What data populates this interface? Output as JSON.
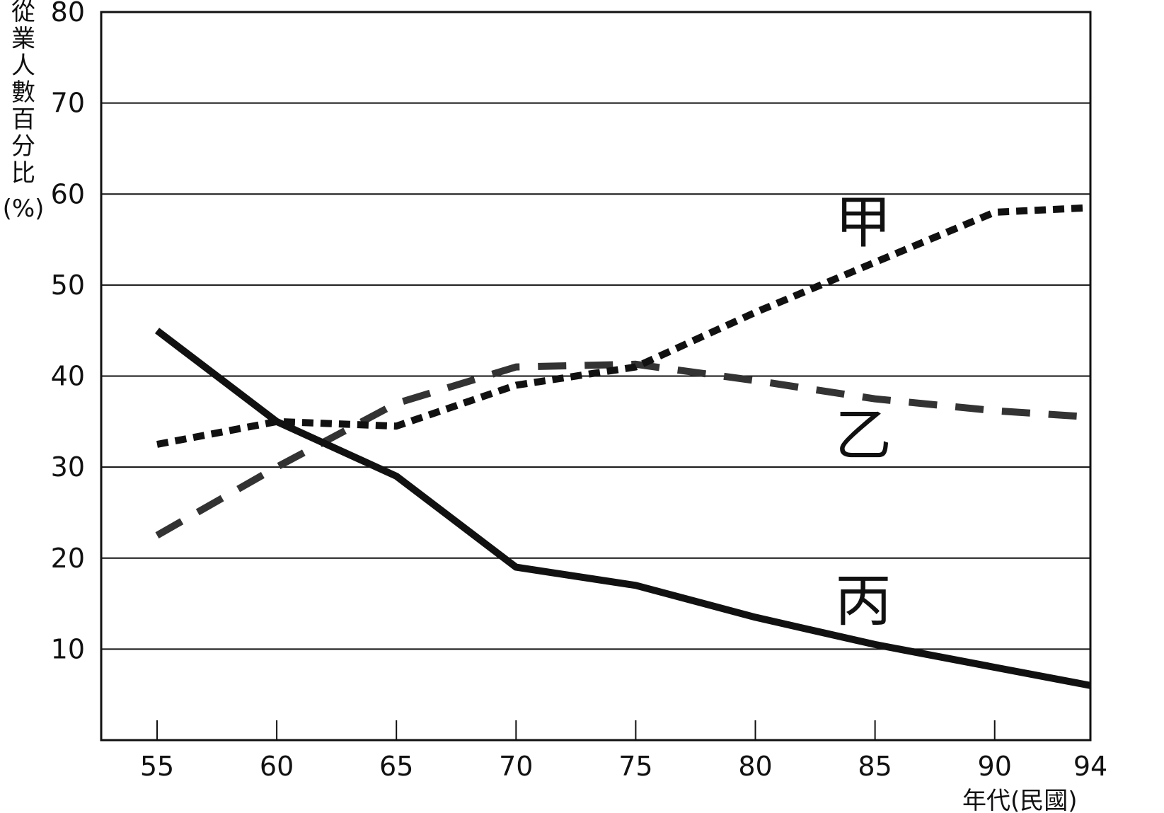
{
  "chart_data": {
    "type": "line",
    "title": "",
    "ylabel": "從業人數百分比(%)",
    "xlabel": "年代(民國)",
    "ylim": [
      0,
      80
    ],
    "yticks": [
      10,
      20,
      30,
      40,
      50,
      60,
      70,
      80
    ],
    "x": [
      55,
      60,
      65,
      70,
      75,
      80,
      85,
      90,
      94
    ],
    "grid": "horizontal",
    "series": [
      {
        "name": "甲",
        "style": "dotted",
        "color": "#111111",
        "values": [
          32.5,
          35,
          34.5,
          39,
          41,
          47,
          52.5,
          58,
          58.5
        ]
      },
      {
        "name": "乙",
        "style": "dashed",
        "color": "#333333",
        "values": [
          22.5,
          30,
          37,
          41,
          41.3,
          39.5,
          37.5,
          36.2,
          35.5
        ]
      },
      {
        "name": "丙",
        "style": "solid",
        "color": "#111111",
        "values": [
          45,
          35,
          29,
          19,
          17,
          13.5,
          10.5,
          8,
          6
        ]
      }
    ]
  }
}
